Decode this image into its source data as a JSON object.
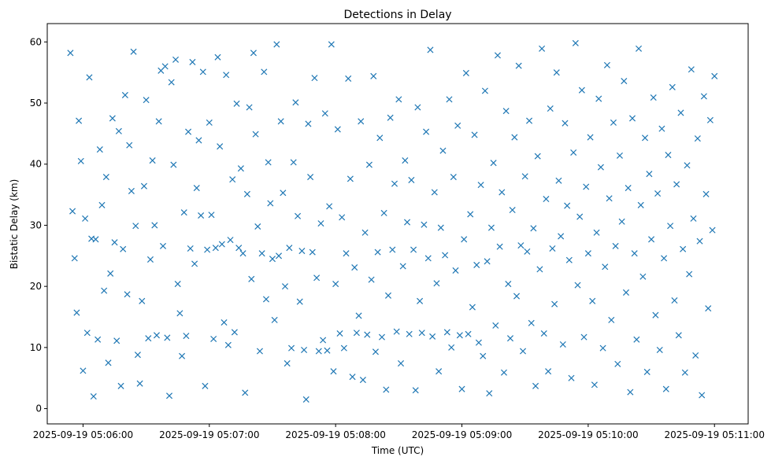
{
  "chart_data": {
    "type": "scatter",
    "title": "Detections in Delay",
    "xlabel": "Time (UTC)",
    "ylabel": "Bistatic Delay (km)",
    "x_range_seconds_after_05_06_00": [
      -17,
      316
    ],
    "ylim": [
      -2.5,
      63
    ],
    "x_ticks": [
      {
        "label": "2025-09-19 05:06:00",
        "time": "05:06:00"
      },
      {
        "label": "2025-09-19 05:07:00",
        "time": "05:07:00"
      },
      {
        "label": "2025-09-19 05:08:00",
        "time": "05:08:00"
      },
      {
        "label": "2025-09-19 05:09:00",
        "time": "05:09:00"
      },
      {
        "label": "2025-09-19 05:10:00",
        "time": "05:10:00"
      },
      {
        "label": "2025-09-19 05:11:00",
        "time": "05:11:00"
      }
    ],
    "y_ticks": [
      "0",
      "10",
      "20",
      "30",
      "40",
      "50",
      "60"
    ],
    "grid": false,
    "legend": "none",
    "marker": "x",
    "series_color": "#1f77b4",
    "points_note": "x = seconds after 2025-09-19 05:06:00 UTC, y = bistatic delay in km",
    "points": [
      [
        -6,
        58.2
      ],
      [
        -5,
        32.3
      ],
      [
        -4,
        24.6
      ],
      [
        -3,
        15.7
      ],
      [
        -2,
        47.1
      ],
      [
        -1,
        40.5
      ],
      [
        0,
        6.2
      ],
      [
        1,
        31.1
      ],
      [
        2,
        12.4
      ],
      [
        3,
        54.2
      ],
      [
        4,
        27.8
      ],
      [
        5,
        2.0
      ],
      [
        6,
        27.7
      ],
      [
        7,
        11.3
      ],
      [
        8,
        42.4
      ],
      [
        9,
        33.3
      ],
      [
        10,
        19.3
      ],
      [
        11,
        37.9
      ],
      [
        12,
        7.5
      ],
      [
        13,
        22.1
      ],
      [
        14,
        47.5
      ],
      [
        15,
        27.2
      ],
      [
        16,
        11.1
      ],
      [
        17,
        45.4
      ],
      [
        18,
        3.7
      ],
      [
        19,
        26.1
      ],
      [
        20,
        51.3
      ],
      [
        21,
        18.7
      ],
      [
        22,
        43.1
      ],
      [
        23,
        35.6
      ],
      [
        24,
        58.4
      ],
      [
        25,
        29.9
      ],
      [
        26,
        8.8
      ],
      [
        27,
        4.1
      ],
      [
        28,
        17.6
      ],
      [
        29,
        36.4
      ],
      [
        30,
        50.5
      ],
      [
        31,
        11.5
      ],
      [
        32,
        24.4
      ],
      [
        33,
        40.6
      ],
      [
        34,
        30.0
      ],
      [
        35,
        12.0
      ],
      [
        36,
        47.0
      ],
      [
        37,
        55.3
      ],
      [
        38,
        26.6
      ],
      [
        39,
        56.0
      ],
      [
        40,
        11.6
      ],
      [
        41,
        2.1
      ],
      [
        42,
        53.4
      ],
      [
        43,
        39.9
      ],
      [
        44,
        57.1
      ],
      [
        45,
        20.4
      ],
      [
        46,
        15.6
      ],
      [
        47,
        8.6
      ],
      [
        48,
        32.1
      ],
      [
        49,
        11.9
      ],
      [
        50,
        45.3
      ],
      [
        51,
        26.2
      ],
      [
        52,
        56.7
      ],
      [
        53,
        23.7
      ],
      [
        54,
        36.1
      ],
      [
        55,
        43.9
      ],
      [
        56,
        31.6
      ],
      [
        57,
        55.1
      ],
      [
        58,
        3.7
      ],
      [
        59,
        26.0
      ],
      [
        60,
        46.8
      ],
      [
        61,
        31.7
      ],
      [
        62,
        11.4
      ],
      [
        63,
        26.3
      ],
      [
        64,
        57.5
      ],
      [
        65,
        42.9
      ],
      [
        66,
        26.9
      ],
      [
        67,
        14.1
      ],
      [
        68,
        54.6
      ],
      [
        69,
        10.4
      ],
      [
        70,
        27.6
      ],
      [
        71,
        37.5
      ],
      [
        72,
        12.5
      ],
      [
        73,
        49.9
      ],
      [
        74,
        26.3
      ],
      [
        75,
        39.3
      ],
      [
        76,
        25.4
      ],
      [
        77,
        2.6
      ],
      [
        78,
        35.1
      ],
      [
        79,
        49.3
      ],
      [
        80,
        21.2
      ],
      [
        81,
        58.2
      ],
      [
        82,
        44.9
      ],
      [
        83,
        29.8
      ],
      [
        84,
        9.4
      ],
      [
        85,
        25.4
      ],
      [
        86,
        55.1
      ],
      [
        87,
        17.9
      ],
      [
        88,
        40.3
      ],
      [
        89,
        33.6
      ],
      [
        90,
        24.5
      ],
      [
        91,
        14.5
      ],
      [
        92,
        59.6
      ],
      [
        93,
        25.0
      ],
      [
        94,
        47.0
      ],
      [
        95,
        35.3
      ],
      [
        96,
        20.0
      ],
      [
        97,
        7.4
      ],
      [
        98,
        26.3
      ],
      [
        99,
        9.9
      ],
      [
        100,
        40.3
      ],
      [
        101,
        50.1
      ],
      [
        102,
        31.5
      ],
      [
        103,
        17.5
      ],
      [
        104,
        25.8
      ],
      [
        105,
        9.6
      ],
      [
        106,
        1.5
      ],
      [
        107,
        46.6
      ],
      [
        108,
        37.9
      ],
      [
        109,
        25.6
      ],
      [
        110,
        54.1
      ],
      [
        111,
        21.4
      ],
      [
        112,
        9.4
      ],
      [
        113,
        30.3
      ],
      [
        114,
        11.2
      ],
      [
        115,
        48.3
      ],
      [
        116,
        9.5
      ],
      [
        117,
        33.1
      ],
      [
        118,
        59.6
      ],
      [
        119,
        6.1
      ],
      [
        120,
        20.4
      ],
      [
        121,
        45.7
      ],
      [
        122,
        12.3
      ],
      [
        123,
        31.3
      ],
      [
        124,
        9.9
      ],
      [
        125,
        25.4
      ],
      [
        126,
        54.0
      ],
      [
        127,
        37.6
      ],
      [
        128,
        5.2
      ],
      [
        129,
        23.1
      ],
      [
        130,
        12.4
      ],
      [
        131,
        15.2
      ],
      [
        132,
        47.0
      ],
      [
        133,
        4.7
      ],
      [
        134,
        28.8
      ],
      [
        135,
        12.1
      ],
      [
        136,
        39.9
      ],
      [
        137,
        21.1
      ],
      [
        138,
        54.4
      ],
      [
        139,
        9.3
      ],
      [
        140,
        25.6
      ],
      [
        141,
        44.3
      ],
      [
        142,
        11.7
      ],
      [
        143,
        32.0
      ],
      [
        144,
        3.1
      ],
      [
        145,
        18.5
      ],
      [
        146,
        47.6
      ],
      [
        147,
        26.0
      ],
      [
        148,
        36.8
      ],
      [
        149,
        12.6
      ],
      [
        150,
        50.6
      ],
      [
        151,
        7.4
      ],
      [
        152,
        23.3
      ],
      [
        153,
        40.6
      ],
      [
        154,
        30.5
      ],
      [
        155,
        12.2
      ],
      [
        156,
        37.4
      ],
      [
        157,
        26.0
      ],
      [
        158,
        3.0
      ],
      [
        159,
        49.3
      ],
      [
        160,
        17.6
      ],
      [
        161,
        12.4
      ],
      [
        162,
        30.1
      ],
      [
        163,
        45.3
      ],
      [
        164,
        24.6
      ],
      [
        165,
        58.7
      ],
      [
        166,
        11.8
      ],
      [
        167,
        35.4
      ],
      [
        168,
        20.5
      ],
      [
        169,
        6.1
      ],
      [
        170,
        29.6
      ],
      [
        171,
        42.2
      ],
      [
        172,
        25.1
      ],
      [
        173,
        12.5
      ],
      [
        174,
        50.6
      ],
      [
        175,
        10.0
      ],
      [
        176,
        37.9
      ],
      [
        177,
        22.6
      ],
      [
        178,
        46.3
      ],
      [
        179,
        12.0
      ],
      [
        180,
        3.2
      ],
      [
        181,
        27.7
      ],
      [
        182,
        54.9
      ],
      [
        183,
        12.2
      ],
      [
        184,
        31.8
      ],
      [
        185,
        16.6
      ],
      [
        186,
        44.8
      ],
      [
        187,
        23.5
      ],
      [
        188,
        10.8
      ],
      [
        189,
        36.6
      ],
      [
        190,
        8.6
      ],
      [
        191,
        52.0
      ],
      [
        192,
        24.1
      ],
      [
        193,
        2.5
      ],
      [
        194,
        29.6
      ],
      [
        195,
        40.2
      ],
      [
        196,
        13.6
      ],
      [
        197,
        57.8
      ],
      [
        198,
        26.5
      ],
      [
        199,
        35.4
      ],
      [
        200,
        5.9
      ],
      [
        201,
        48.7
      ],
      [
        202,
        20.4
      ],
      [
        203,
        11.5
      ],
      [
        204,
        32.5
      ],
      [
        205,
        44.4
      ],
      [
        206,
        18.4
      ],
      [
        207,
        56.1
      ],
      [
        208,
        26.7
      ],
      [
        209,
        9.4
      ],
      [
        210,
        38.0
      ],
      [
        211,
        25.7
      ],
      [
        212,
        47.1
      ],
      [
        213,
        14.0
      ],
      [
        214,
        29.5
      ],
      [
        215,
        3.7
      ],
      [
        216,
        41.3
      ],
      [
        217,
        22.8
      ],
      [
        218,
        58.9
      ],
      [
        219,
        12.3
      ],
      [
        220,
        34.3
      ],
      [
        221,
        6.1
      ],
      [
        222,
        49.1
      ],
      [
        223,
        26.2
      ],
      [
        224,
        17.1
      ],
      [
        225,
        55.0
      ],
      [
        226,
        37.3
      ],
      [
        227,
        28.2
      ],
      [
        228,
        10.5
      ],
      [
        229,
        46.7
      ],
      [
        230,
        33.2
      ],
      [
        231,
        24.3
      ],
      [
        232,
        5.0
      ],
      [
        233,
        41.9
      ],
      [
        234,
        59.8
      ],
      [
        235,
        20.2
      ],
      [
        236,
        31.4
      ],
      [
        237,
        52.1
      ],
      [
        238,
        11.7
      ],
      [
        239,
        36.3
      ],
      [
        240,
        25.4
      ],
      [
        241,
        44.4
      ],
      [
        242,
        17.6
      ],
      [
        243,
        3.9
      ],
      [
        244,
        28.8
      ],
      [
        245,
        50.7
      ],
      [
        246,
        39.5
      ],
      [
        247,
        9.9
      ],
      [
        248,
        23.2
      ],
      [
        249,
        56.2
      ],
      [
        250,
        34.4
      ],
      [
        251,
        14.5
      ],
      [
        252,
        46.8
      ],
      [
        253,
        26.6
      ],
      [
        254,
        7.3
      ],
      [
        255,
        41.4
      ],
      [
        256,
        30.6
      ],
      [
        257,
        53.6
      ],
      [
        258,
        19.0
      ],
      [
        259,
        36.1
      ],
      [
        260,
        2.7
      ],
      [
        261,
        47.5
      ],
      [
        262,
        25.4
      ],
      [
        263,
        11.3
      ],
      [
        264,
        58.9
      ],
      [
        265,
        33.3
      ],
      [
        266,
        21.6
      ],
      [
        267,
        44.3
      ],
      [
        268,
        6.0
      ],
      [
        269,
        38.4
      ],
      [
        270,
        27.7
      ],
      [
        271,
        50.9
      ],
      [
        272,
        15.3
      ],
      [
        273,
        35.2
      ],
      [
        274,
        9.6
      ],
      [
        275,
        45.8
      ],
      [
        276,
        24.6
      ],
      [
        277,
        3.2
      ],
      [
        278,
        41.5
      ],
      [
        279,
        29.9
      ],
      [
        280,
        52.6
      ],
      [
        281,
        17.7
      ],
      [
        282,
        36.7
      ],
      [
        283,
        12.0
      ],
      [
        284,
        48.4
      ],
      [
        285,
        26.1
      ],
      [
        286,
        5.9
      ],
      [
        287,
        39.8
      ],
      [
        288,
        22.0
      ],
      [
        289,
        55.5
      ],
      [
        290,
        31.1
      ],
      [
        291,
        8.7
      ],
      [
        292,
        44.2
      ],
      [
        293,
        27.4
      ],
      [
        294,
        2.2
      ],
      [
        295,
        51.1
      ],
      [
        296,
        35.1
      ],
      [
        297,
        16.4
      ],
      [
        298,
        47.2
      ],
      [
        299,
        29.2
      ],
      [
        300,
        54.4
      ]
    ]
  }
}
